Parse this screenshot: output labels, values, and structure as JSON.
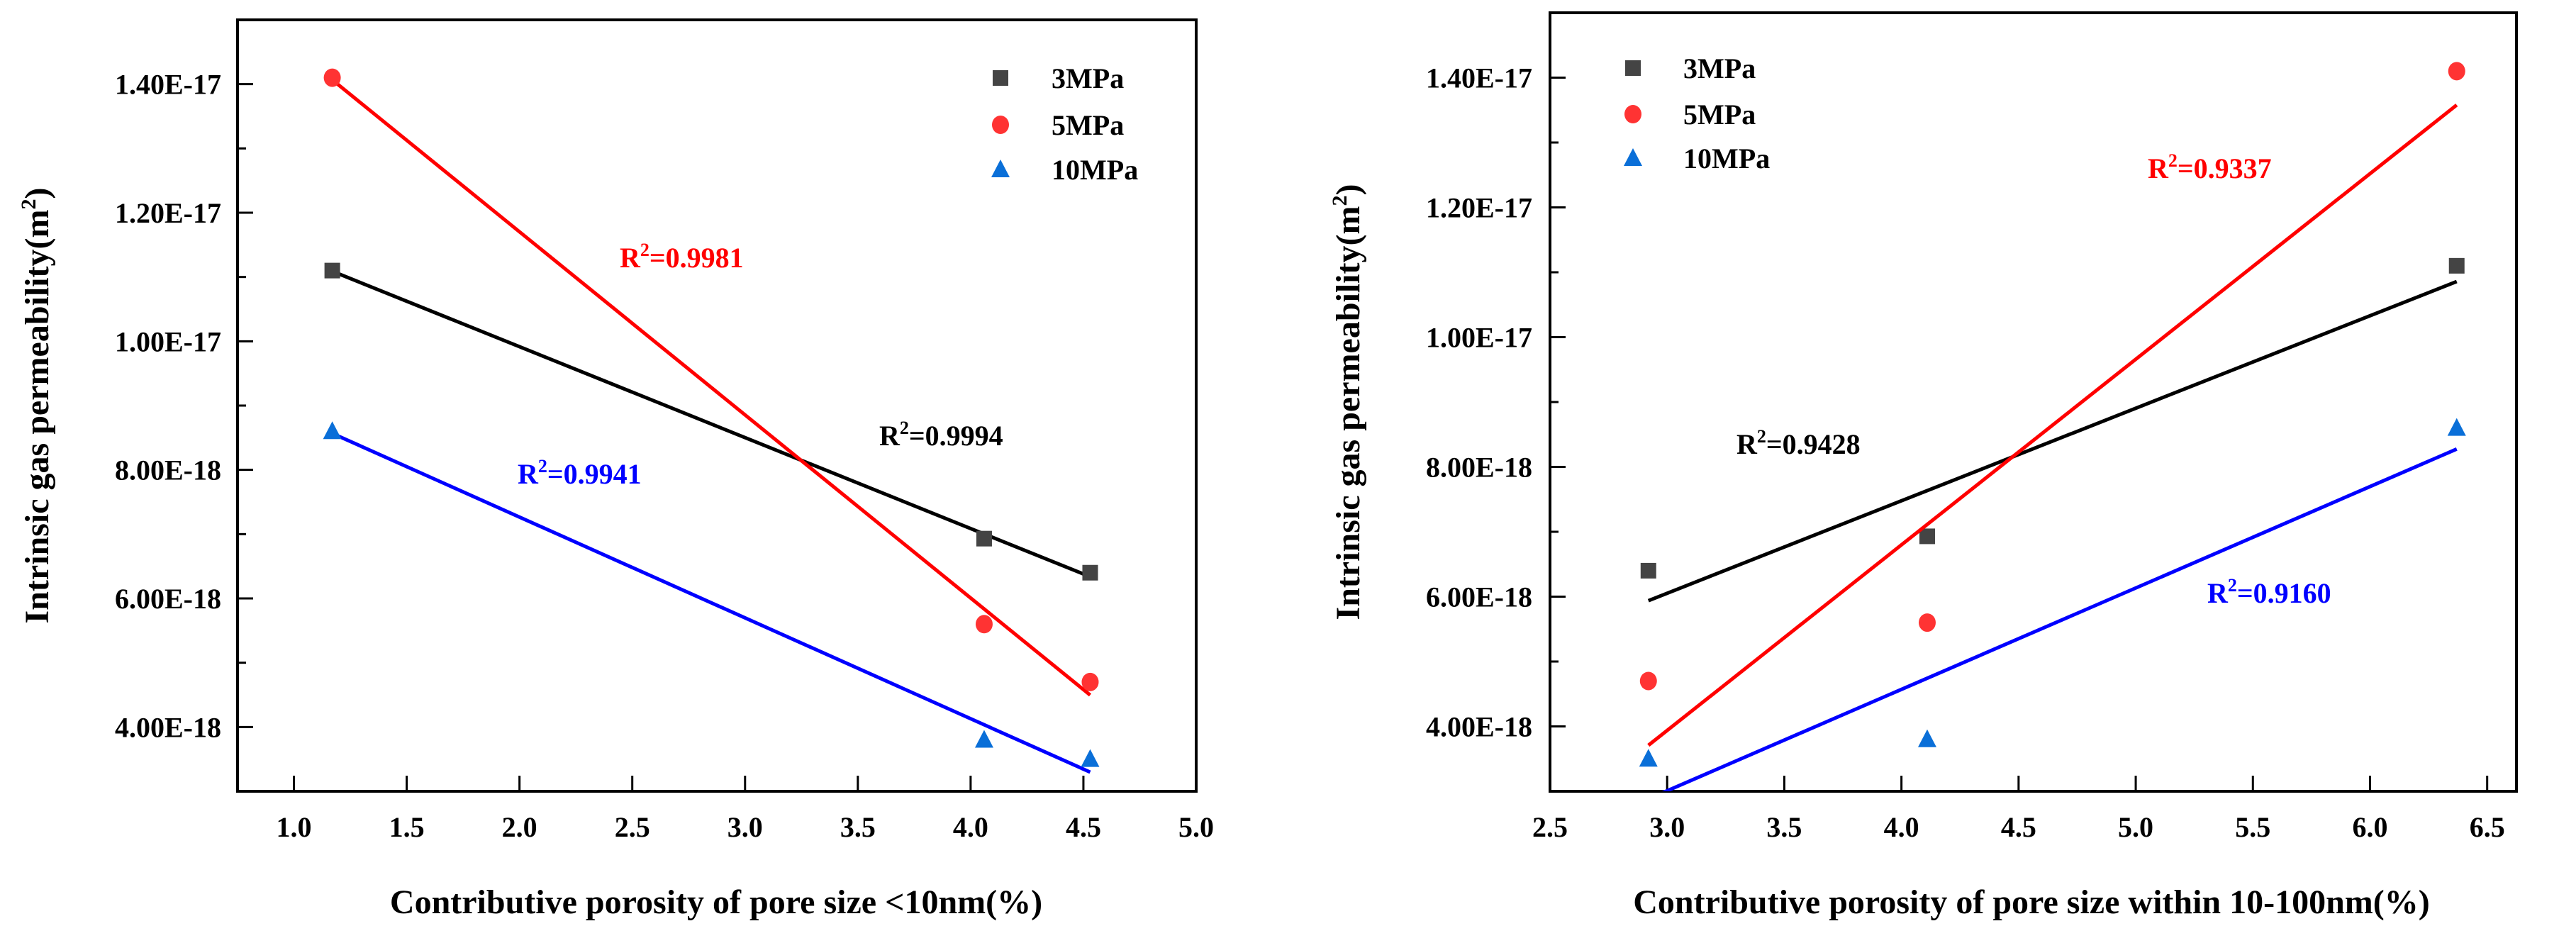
{
  "chart_data": [
    {
      "type": "scatter",
      "xlabel": "Contributive porosity of pore size <10nm(%)",
      "ylabel": "Intrinsic gas permeability(m",
      "ylabel_sup": "2",
      "ylabel_end": ")",
      "xlim": [
        0.75,
        5.0
      ],
      "ylim": [
        3e-18,
        1.5e-17
      ],
      "xticks": [
        1.0,
        1.5,
        2.0,
        2.5,
        3.0,
        3.5,
        4.0,
        4.5,
        5.0
      ],
      "xtick_labels": [
        "1.0",
        "1.5",
        "2.0",
        "2.5",
        "3.0",
        "3.5",
        "4.0",
        "4.5",
        "5.0"
      ],
      "yticks": [
        4e-18,
        6e-18,
        8e-18,
        1e-17,
        1.2e-17,
        1.4e-17
      ],
      "ytick_labels": [
        "4.00E-18",
        "6.00E-18",
        "8.00E-18",
        "1.00E-17",
        "1.20E-17",
        "1.40E-17"
      ],
      "grid": false,
      "legend_position": "top-right",
      "series": [
        {
          "name": "3MPa",
          "marker": "square",
          "color": "#444444",
          "fit_color": "#000000",
          "x": [
            1.17,
            4.06,
            4.53
          ],
          "y": [
            1.11e-17,
            6.93e-18,
            6.4e-18
          ],
          "r2_label": "=0.9994"
        },
        {
          "name": "5MPa",
          "marker": "circle",
          "color": "#ff3333",
          "fit_color": "#ff0000",
          "x": [
            1.17,
            4.06,
            4.53
          ],
          "y": [
            1.41e-17,
            5.6e-18,
            4.7e-18
          ],
          "r2_label": "=0.9981"
        },
        {
          "name": "10MPa",
          "marker": "triangle",
          "color": "#0a6fd8",
          "fit_color": "#0000ff",
          "x": [
            1.17,
            4.06,
            4.53
          ],
          "y": [
            8.6e-18,
            3.8e-18,
            3.5e-18
          ],
          "r2_label": "=0.9941"
        }
      ]
    },
    {
      "type": "scatter",
      "xlabel": "Contributive porosity of pore size within 10-100nm(%)",
      "ylabel": "Intrinsic gas permeability(m",
      "ylabel_sup": "2",
      "ylabel_end": ")",
      "xlim": [
        2.5,
        6.625
      ],
      "ylim": [
        3e-18,
        1.5e-17
      ],
      "xticks": [
        2.5,
        3.0,
        3.5,
        4.0,
        4.5,
        5.0,
        5.5,
        6.0,
        6.5
      ],
      "xtick_labels": [
        "2.5",
        "3.0",
        "3.5",
        "4.0",
        "4.5",
        "5.0",
        "5.5",
        "6.0",
        "6.5"
      ],
      "yticks": [
        4e-18,
        6e-18,
        8e-18,
        1e-17,
        1.2e-17,
        1.4e-17
      ],
      "ytick_labels": [
        "4.00E-18",
        "6.00E-18",
        "8.00E-18",
        "1.00E-17",
        "1.20E-17",
        "1.40E-17"
      ],
      "grid": false,
      "legend_position": "top-left",
      "series": [
        {
          "name": "3MPa",
          "marker": "square",
          "color": "#444444",
          "fit_color": "#000000",
          "x": [
            2.92,
            4.11,
            6.37
          ],
          "y": [
            6.4e-18,
            6.93e-18,
            1.11e-17
          ],
          "r2_label": "=0.9428"
        },
        {
          "name": "5MPa",
          "marker": "circle",
          "color": "#ff3333",
          "fit_color": "#ff0000",
          "x": [
            2.92,
            4.11,
            6.37
          ],
          "y": [
            4.7e-18,
            5.6e-18,
            1.41e-17
          ],
          "r2_label": "=0.9337"
        },
        {
          "name": "10MPa",
          "marker": "triangle",
          "color": "#0a6fd8",
          "fit_color": "#0000ff",
          "x": [
            2.92,
            4.11,
            6.37
          ],
          "y": [
            3.5e-18,
            3.8e-18,
            8.6e-18
          ],
          "r2_label": "=0.9160"
        }
      ]
    }
  ],
  "r2_prefix": "R",
  "r2_sup": "2"
}
